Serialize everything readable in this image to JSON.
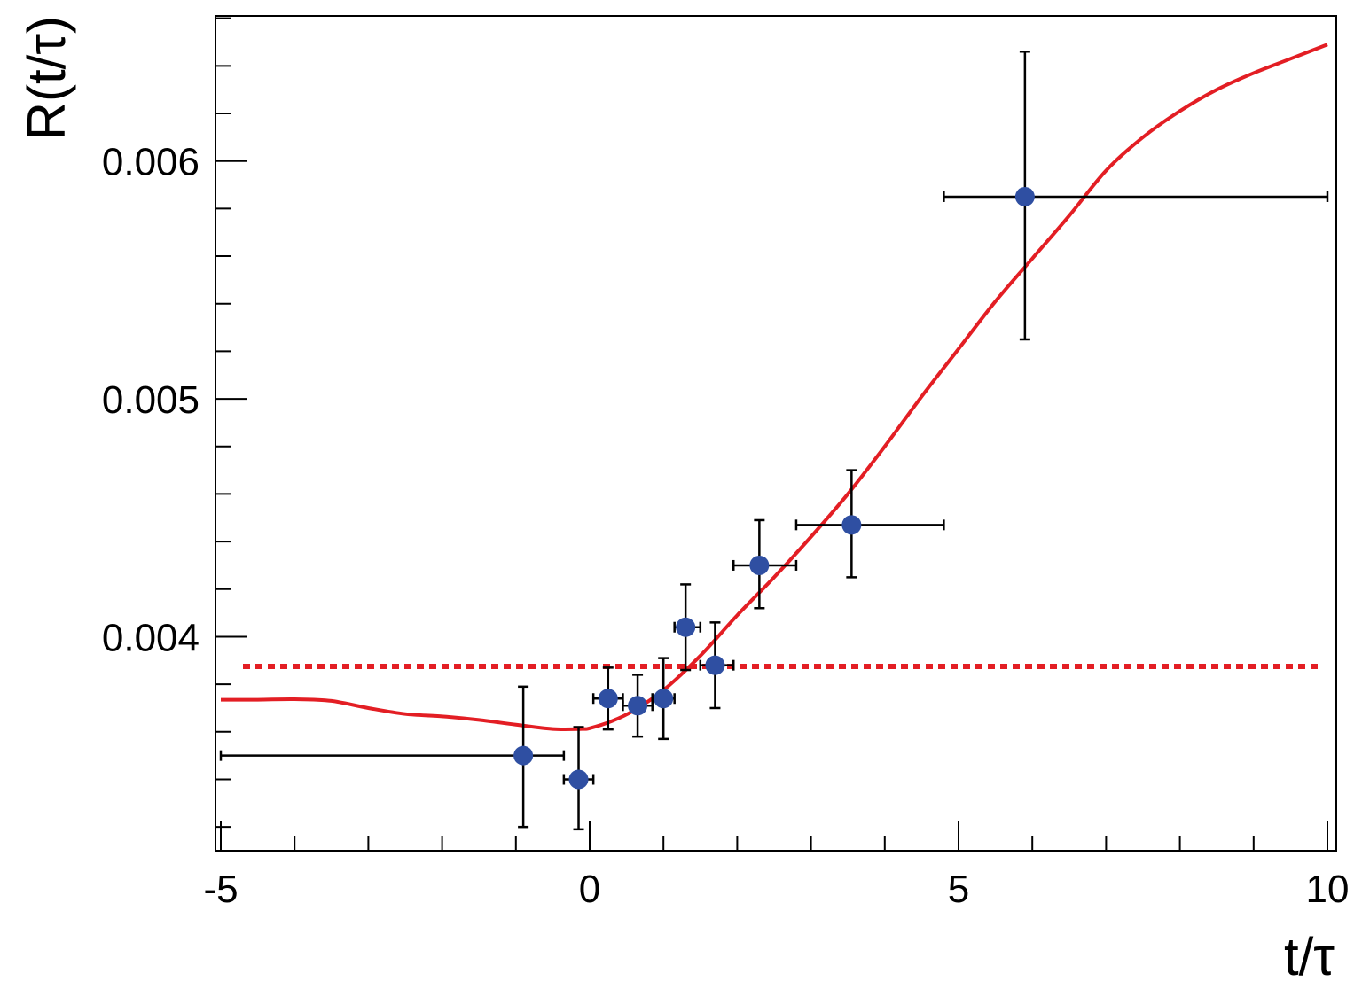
{
  "chart_data": {
    "type": "scatter",
    "xlabel": "t/τ",
    "ylabel": "R(t/τ)",
    "xlim": [
      -5,
      10
    ],
    "ylim": [
      0.0031,
      0.00661
    ],
    "x_ticks": [
      {
        "value": -5,
        "label": "-5"
      },
      {
        "value": 0,
        "label": "0"
      },
      {
        "value": 5,
        "label": "5"
      },
      {
        "value": 10,
        "label": "10"
      }
    ],
    "y_ticks": [
      {
        "value": 0.004,
        "label": "0.004"
      },
      {
        "value": 0.005,
        "label": "0.005"
      },
      {
        "value": 0.006,
        "label": "0.006"
      }
    ],
    "grid": false,
    "colors": {
      "points": "#2f4fa2",
      "error_bars": "#000000",
      "fit_curve": "#e31e24",
      "reference_line": "#e31e24"
    },
    "series": [
      {
        "kind": "points_with_errors",
        "points": [
          {
            "x": -0.9,
            "x_lo": -5.0,
            "x_hi": -0.35,
            "y": 0.0035,
            "y_lo": 0.0032,
            "y_hi": 0.00379
          },
          {
            "x": -0.15,
            "x_lo": -0.35,
            "x_hi": 0.05,
            "y": 0.0034,
            "y_lo": 0.00319,
            "y_hi": 0.00362
          },
          {
            "x": 0.25,
            "x_lo": 0.05,
            "x_hi": 0.45,
            "y": 0.00374,
            "y_lo": 0.00361,
            "y_hi": 0.00387
          },
          {
            "x": 0.65,
            "x_lo": 0.45,
            "x_hi": 0.85,
            "y": 0.00371,
            "y_lo": 0.00358,
            "y_hi": 0.00384
          },
          {
            "x": 1.0,
            "x_lo": 0.85,
            "x_hi": 1.15,
            "y": 0.00374,
            "y_lo": 0.00357,
            "y_hi": 0.00391
          },
          {
            "x": 1.3,
            "x_lo": 1.15,
            "x_hi": 1.5,
            "y": 0.00404,
            "y_lo": 0.00386,
            "y_hi": 0.00422
          },
          {
            "x": 1.7,
            "x_lo": 1.5,
            "x_hi": 1.95,
            "y": 0.00388,
            "y_lo": 0.0037,
            "y_hi": 0.00406
          },
          {
            "x": 2.3,
            "x_lo": 1.95,
            "x_hi": 2.8,
            "y": 0.0043,
            "y_lo": 0.00412,
            "y_hi": 0.00449
          },
          {
            "x": 3.55,
            "x_lo": 2.8,
            "x_hi": 4.8,
            "y": 0.00447,
            "y_lo": 0.00425,
            "y_hi": 0.0047
          },
          {
            "x": 5.9,
            "x_lo": 4.8,
            "x_hi": 10.0,
            "y": 0.00585,
            "y_lo": 0.00525,
            "y_hi": 0.00646
          }
        ]
      },
      {
        "kind": "curve",
        "style": "solid",
        "x": [
          -5.0,
          -4.5,
          -4.0,
          -3.5,
          -3.0,
          -2.5,
          -2.0,
          -1.5,
          -1.0,
          -0.5,
          -0.1,
          0.0,
          0.3,
          0.6,
          1.0,
          1.5,
          2.0,
          2.5,
          3.0,
          3.5,
          4.0,
          4.5,
          5.0,
          5.5,
          6.0,
          6.5,
          7.0,
          7.5,
          8.0,
          8.5,
          9.0,
          9.5,
          10.0
        ],
        "y": [
          0.003735,
          0.003735,
          0.003737,
          0.00373,
          0.0037,
          0.003675,
          0.003665,
          0.00365,
          0.00363,
          0.003612,
          0.003612,
          0.003615,
          0.003645,
          0.00369,
          0.003775,
          0.00392,
          0.00409,
          0.00425,
          0.00442,
          0.0046,
          0.0048,
          0.00501,
          0.00521,
          0.00541,
          0.00559,
          0.00577,
          0.00596,
          0.0061,
          0.00621,
          0.0063,
          0.00637,
          0.00643,
          0.00649
        ]
      },
      {
        "kind": "hline",
        "style": "dotted",
        "y": 0.003875,
        "x_range": [
          -5.0,
          10.0
        ]
      }
    ]
  }
}
